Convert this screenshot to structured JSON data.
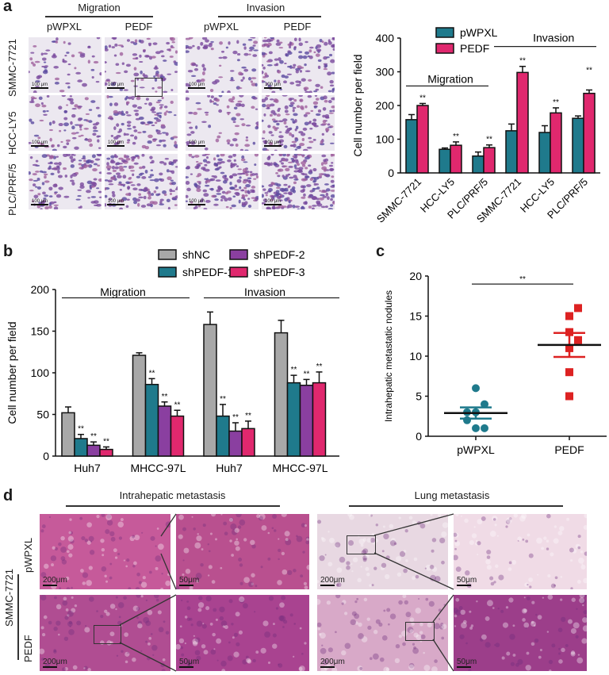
{
  "panels": {
    "a": {
      "letter": "a",
      "micrographs": {
        "group_headers": [
          "Migration",
          "Invasion"
        ],
        "column_headers": [
          "pWPXL",
          "PEDF",
          "pWPXL",
          "PEDF"
        ],
        "row_labels": [
          "SMMC-7721",
          "HCC-LY5",
          "PLC/PRF/5"
        ],
        "scale_label": "100 μm"
      }
    },
    "b": {
      "letter": "b"
    },
    "c": {
      "letter": "c"
    },
    "d": {
      "letter": "d",
      "group_headers": [
        "Intrahepatic metastasis",
        "Lung metastasis"
      ],
      "cell_line_label": "SMMC-7721",
      "row_labels": [
        "pWPXL",
        "PEDF"
      ],
      "scale_labels": [
        "200μm",
        "50μm"
      ]
    }
  },
  "colors": {
    "pWPXL": "#1f7a8c",
    "PEDF": "#e0286e",
    "shNC": "#a8a8a8",
    "shPEDF-1": "#1f7a8c",
    "shPEDF-2": "#8a3fa0",
    "shPEDF-3": "#e0286e",
    "scatter_pWPXL": "#1f7a8c",
    "scatter_PEDF": "#dd2222"
  },
  "chart_data": [
    {
      "panel": "a",
      "type": "bar",
      "title": "",
      "ylabel": "Cell number per field",
      "xlabel": "",
      "ylim": [
        0,
        400
      ],
      "yticks": [
        0,
        100,
        200,
        300,
        400
      ],
      "group_annotations": [
        {
          "label": "Migration",
          "categories": [
            "SMMC-7721",
            "HCC-LY5",
            "PLC/PRF/5"
          ]
        },
        {
          "label": "Invasion",
          "categories": [
            "SMMC-7721",
            "HCC-LY5",
            "PLC/PRF/5"
          ]
        }
      ],
      "categories": [
        "SMMC-7721",
        "HCC-LY5",
        "PLC/PRF/5",
        "SMMC-7721",
        "HCC-LY5",
        "PLC/PRF/5"
      ],
      "series": [
        {
          "name": "pWPXL",
          "values": [
            158,
            70,
            50,
            125,
            120,
            162
          ],
          "errors": [
            15,
            4,
            12,
            20,
            20,
            7
          ]
        },
        {
          "name": "PEDF",
          "values": [
            200,
            82,
            75,
            298,
            178,
            236
          ],
          "errors": [
            6,
            10,
            8,
            18,
            15,
            10
          ]
        }
      ],
      "significance": [
        "**",
        "**",
        "**",
        "**",
        "**",
        "**"
      ],
      "legend": [
        "pWPXL",
        "PEDF"
      ],
      "legend_position": "top-left"
    },
    {
      "panel": "b",
      "type": "bar",
      "title": "",
      "ylabel": "Cell number per field",
      "xlabel": "",
      "ylim": [
        0,
        200
      ],
      "yticks": [
        0,
        50,
        100,
        150,
        200
      ],
      "group_annotations": [
        {
          "label": "Migration",
          "categories": [
            "Huh7",
            "MHCC-97L"
          ]
        },
        {
          "label": "Invasion",
          "categories": [
            "Huh7",
            "MHCC-97L"
          ]
        }
      ],
      "categories": [
        "Huh7",
        "MHCC-97L",
        "Huh7",
        "MHCC-97L"
      ],
      "series": [
        {
          "name": "shNC",
          "values": [
            52,
            121,
            158,
            148
          ],
          "errors": [
            7,
            3,
            15,
            15
          ]
        },
        {
          "name": "shPEDF-1",
          "values": [
            21,
            86,
            48,
            88
          ],
          "errors": [
            5,
            7,
            14,
            9
          ]
        },
        {
          "name": "shPEDF-2",
          "values": [
            13,
            60,
            30,
            85
          ],
          "errors": [
            4,
            5,
            10,
            7
          ]
        },
        {
          "name": "shPEDF-3",
          "values": [
            8,
            48,
            33,
            88
          ],
          "errors": [
            3,
            7,
            9,
            13
          ]
        }
      ],
      "significance_note": "** on all shPEDF bars",
      "legend": [
        "shNC",
        "shPEDF-1",
        "shPEDF-2",
        "shPEDF-3"
      ],
      "legend_position": "top-right"
    },
    {
      "panel": "c",
      "type": "scatter",
      "title": "",
      "ylabel": "Intrahepatic metastatic nodules",
      "xlabel": "",
      "ylim": [
        0,
        20
      ],
      "yticks": [
        0,
        5,
        10,
        15,
        20
      ],
      "categories": [
        "pWPXL",
        "PEDF"
      ],
      "series": [
        {
          "name": "pWPXL",
          "marker": "circle",
          "values": [
            6,
            4,
            3,
            3,
            2,
            1,
            1
          ],
          "mean": 2.9,
          "sem": 0.7
        },
        {
          "name": "PEDF",
          "marker": "square",
          "values": [
            16,
            15,
            13,
            12,
            11,
            8,
            5
          ],
          "mean": 11.4,
          "sem": 1.5
        }
      ],
      "significance": "**"
    }
  ]
}
